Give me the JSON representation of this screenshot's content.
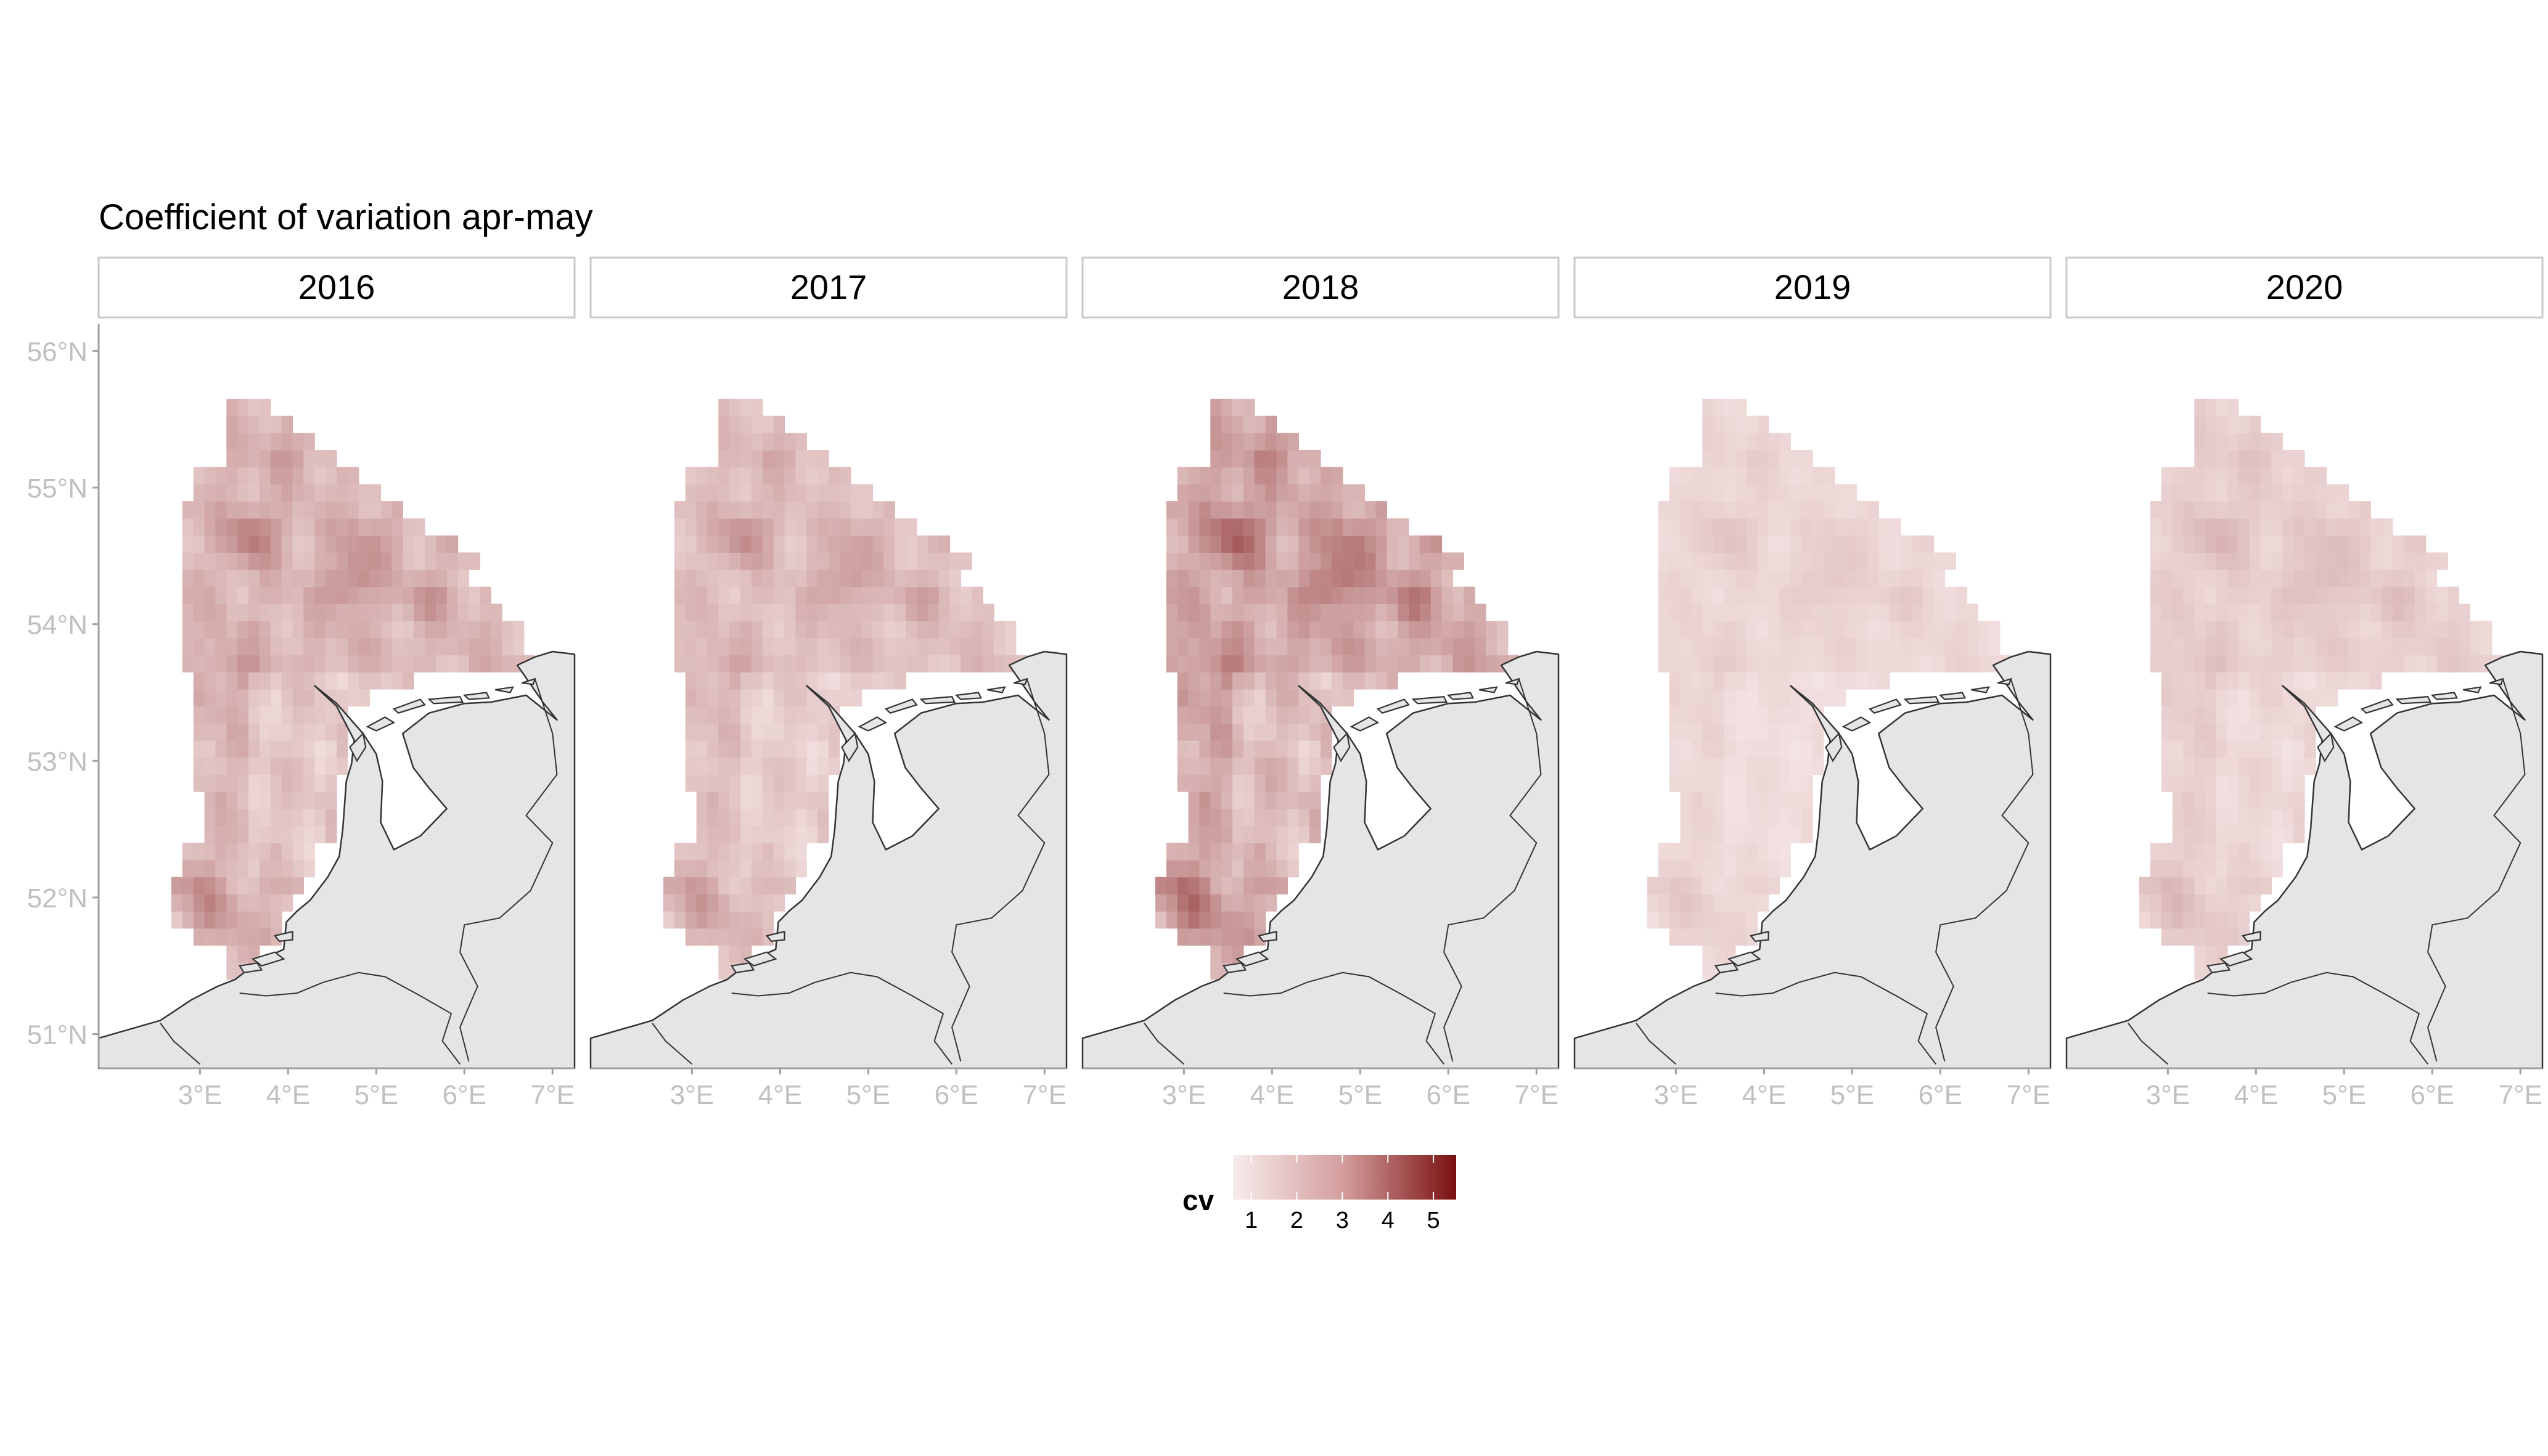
{
  "title": "Coefficient of variation apr-may",
  "panels": [
    {
      "label": "2016",
      "intensity": 0.48
    },
    {
      "label": "2017",
      "intensity": 0.4
    },
    {
      "label": "2018",
      "intensity": 0.62
    },
    {
      "label": "2019",
      "intensity": 0.17
    },
    {
      "label": "2020",
      "intensity": 0.24
    }
  ],
  "axes": {
    "x_ticks": [
      "3°E",
      "4°E",
      "5°E",
      "6°E",
      "7°E"
    ],
    "x_values": [
      3,
      4,
      5,
      6,
      7
    ],
    "y_ticks": [
      "56°N",
      "55°N",
      "54°N",
      "53°N",
      "52°N",
      "51°N"
    ],
    "y_values": [
      56,
      55,
      54,
      53,
      52,
      51
    ],
    "x_range": [
      1.85,
      7.25
    ],
    "y_range": [
      50.75,
      56.2
    ]
  },
  "legend": {
    "title": "cv",
    "ticks": [
      "1",
      "2",
      "3",
      "4",
      "5"
    ],
    "tick_values": [
      1,
      2,
      3,
      4,
      5
    ],
    "range": [
      0.6,
      5.5
    ],
    "colors": {
      "low": "#f7e8e8",
      "high": "#7a1010"
    }
  },
  "colors": {
    "land": "#e5e5e5",
    "coast": "#333333",
    "strip_border": "#c8c8c8",
    "axis_text": "#c0c0c0",
    "axis_line": "#a0a0a0"
  }
}
